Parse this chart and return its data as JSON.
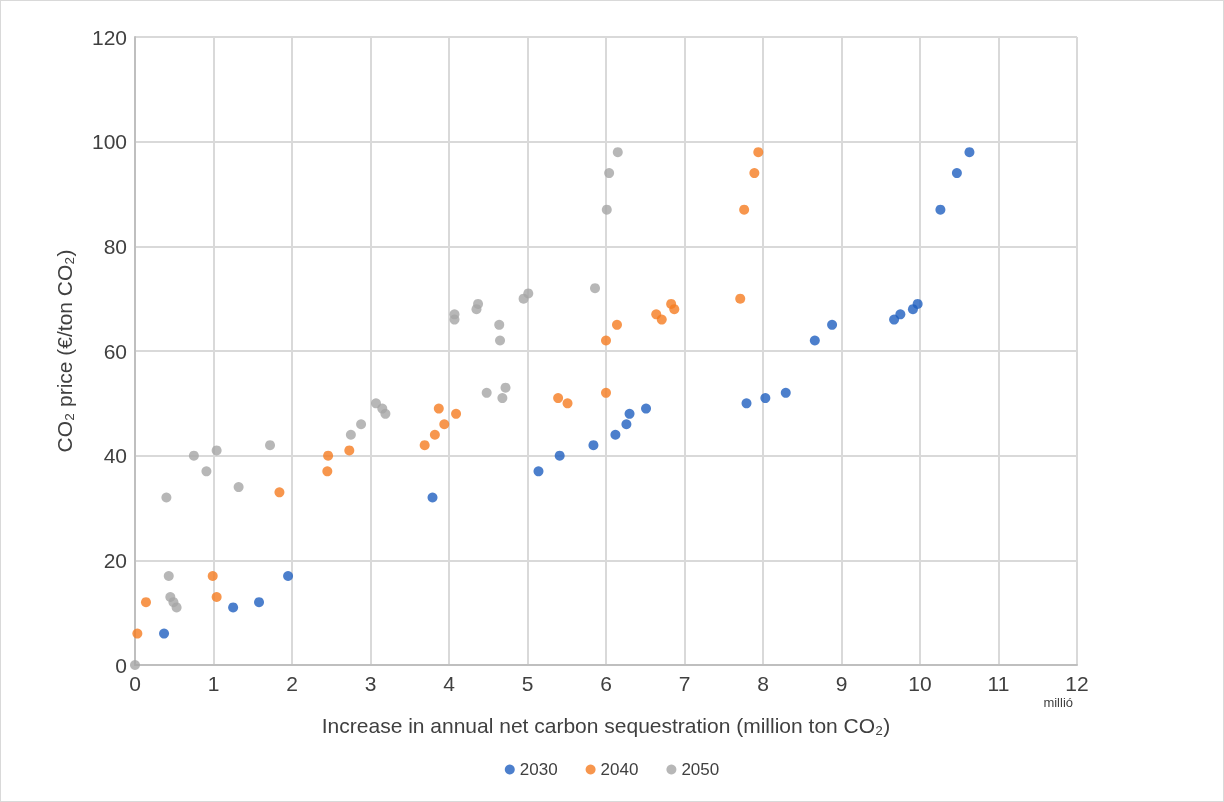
{
  "chart_data": {
    "type": "scatter",
    "xlabel": "Increase in annual net carbon sequestration (million ton CO₂)",
    "ylabel": "CO₂ price (€/ton CO₂)",
    "annotations": [
      "millió"
    ],
    "xlim": [
      0,
      12
    ],
    "xticks": [
      0,
      1,
      2,
      3,
      4,
      5,
      6,
      7,
      8,
      9,
      10,
      11,
      12
    ],
    "ylim": [
      0,
      120
    ],
    "yticks": [
      0,
      20,
      40,
      60,
      80,
      100,
      120
    ],
    "grid": true,
    "legend": "bottom",
    "marker": "circle",
    "series": [
      {
        "name": "2030",
        "color": "#1f5fbf",
        "x": [
          0.37,
          1.25,
          1.58,
          1.95,
          3.79,
          5.14,
          5.41,
          5.84,
          6.12,
          6.26,
          6.3,
          6.51,
          7.79,
          8.03,
          8.29,
          8.66,
          8.88,
          9.67,
          9.75,
          9.91,
          9.97,
          10.26,
          10.47,
          10.63
        ],
        "values": [
          6,
          11,
          12,
          17,
          32,
          37,
          40,
          42,
          44,
          46,
          48,
          49,
          50,
          51,
          52,
          62,
          65,
          66,
          67,
          68,
          69,
          87,
          94,
          98
        ]
      },
      {
        "name": "2040",
        "color": "#f57c20",
        "x": [
          0.03,
          0.14,
          0.99,
          1.04,
          1.84,
          2.45,
          2.46,
          2.73,
          3.69,
          3.82,
          3.87,
          3.94,
          4.09,
          5.39,
          5.51,
          6.0,
          6.0,
          6.14,
          6.64,
          6.71,
          6.83,
          6.87,
          7.71,
          7.76,
          7.89,
          7.94
        ],
        "values": [
          6,
          12,
          17,
          13,
          33,
          37,
          40,
          41,
          42,
          44,
          49,
          46,
          48,
          51,
          50,
          52,
          62,
          65,
          67,
          66,
          69,
          68,
          70,
          87,
          94,
          98
        ]
      },
      {
        "name": "2050",
        "color": "#a5a5a5",
        "x": [
          0,
          0.4,
          0.43,
          0.45,
          0.49,
          0.53,
          0.75,
          0.91,
          1.04,
          1.32,
          1.72,
          2.75,
          2.88,
          3.07,
          3.15,
          3.19,
          4.07,
          4.07,
          4.35,
          4.37,
          4.48,
          4.64,
          4.65,
          4.68,
          4.72,
          4.95,
          5.01,
          5.86,
          6.01,
          6.04,
          6.15
        ],
        "values": [
          0,
          32,
          17,
          13,
          12,
          11,
          40,
          37,
          41,
          34,
          42,
          44,
          46,
          50,
          49,
          48,
          67,
          66,
          68,
          69,
          52,
          65,
          62,
          51,
          53,
          70,
          71,
          72,
          87,
          94,
          98
        ]
      }
    ]
  }
}
